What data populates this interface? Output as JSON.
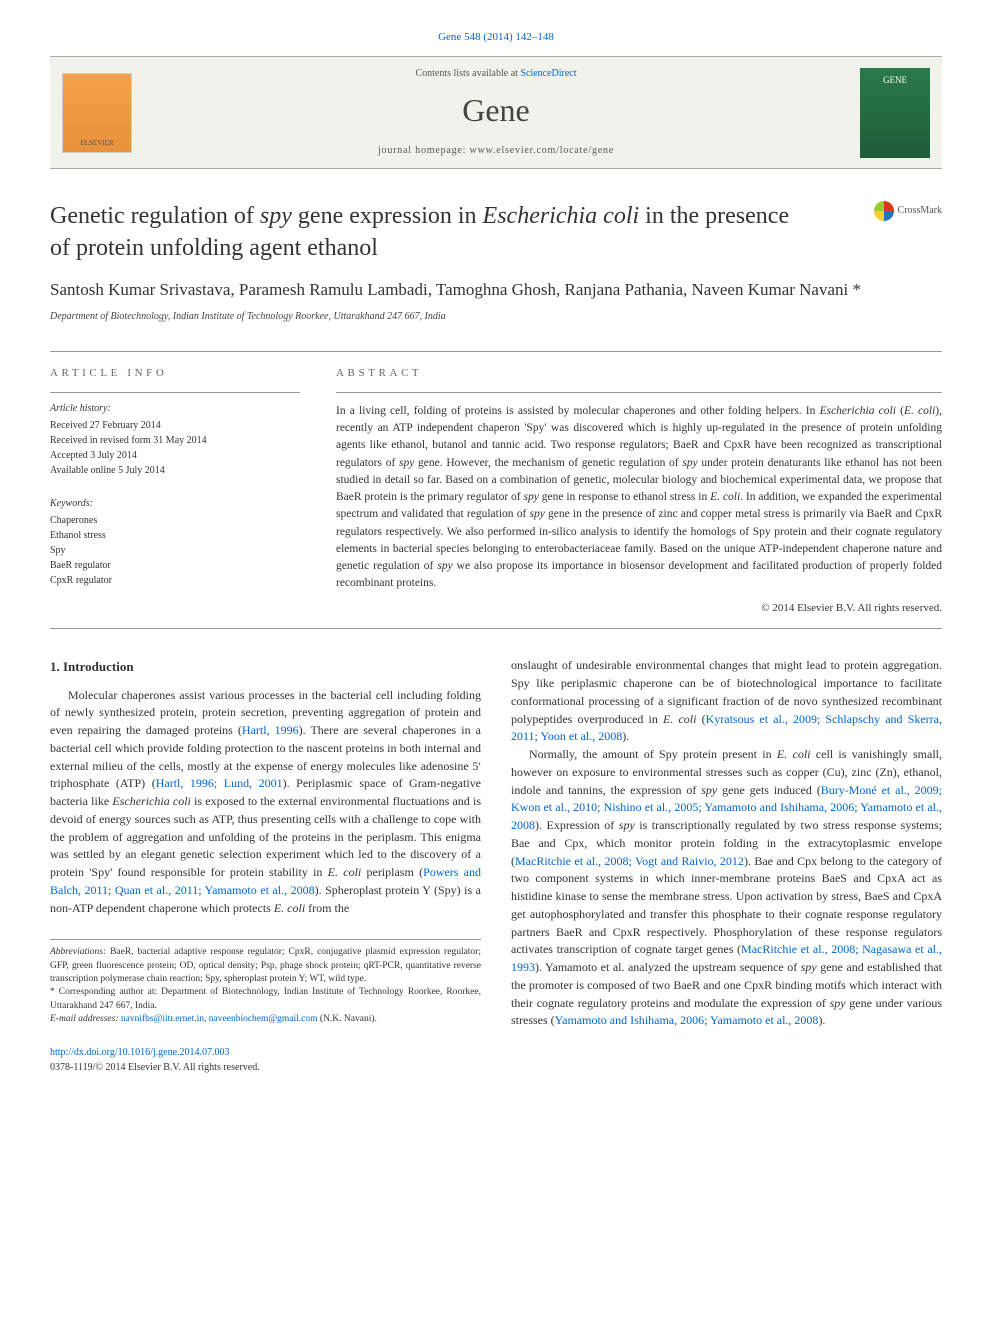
{
  "citation": {
    "journal": "Gene",
    "volume_pages": "548 (2014) 142–148"
  },
  "header": {
    "contents_prefix": "Contents lists available at ",
    "contents_link": "ScienceDirect",
    "journal_name": "Gene",
    "homepage_label": "journal homepage: www.elsevier.com/locate/gene",
    "publisher_logo_label": "ELSEVIER",
    "cover_label": "GENE"
  },
  "crossmark_label": "CrossMark",
  "title_parts": {
    "p1": "Genetic regulation of ",
    "i1": "spy",
    "p2": " gene expression in ",
    "i2": "Escherichia coli",
    "p3": " in the presence of protein unfolding agent ethanol"
  },
  "authors": "Santosh Kumar Srivastava, Paramesh Ramulu Lambadi, Tamoghna Ghosh, Ranjana Pathania, Naveen Kumar Navani *",
  "affiliation": "Department of Biotechnology, Indian Institute of Technology Roorkee, Uttarakhand 247 667, India",
  "article_info_label": "article info",
  "abstract_label": "abstract",
  "history": {
    "heading": "Article history:",
    "received": "Received 27 February 2014",
    "revised": "Received in revised form 31 May 2014",
    "accepted": "Accepted 3 July 2014",
    "online": "Available online 5 July 2014"
  },
  "keywords": {
    "heading": "Keywords:",
    "items": [
      "Chaperones",
      "Ethanol stress",
      "Spy",
      "BaeR regulator",
      "CpxR regulator"
    ]
  },
  "abstract": {
    "p1a": "In a living cell, folding of proteins is assisted by molecular chaperones and other folding helpers. In ",
    "i1": "Escherichia coli",
    "p1b": " (",
    "i2": "E. coli",
    "p1c": "), recently an ATP independent chaperon 'Spy' was discovered which is highly up-regulated in the presence of protein unfolding agents like ethanol, butanol and tannic acid. Two response regulators; BaeR and CpxR have been recognized as transcriptional regulators of ",
    "i3": "spy",
    "p1d": " gene. However, the mechanism of genetic regulation of ",
    "i4": "spy",
    "p1e": " under protein denaturants like ethanol has not been studied in detail so far. Based on a combination of genetic, molecular biology and biochemical experimental data, we propose that BaeR protein is the primary regulator of ",
    "i5": "spy",
    "p1f": " gene in response to ethanol stress in ",
    "i6": "E. coli",
    "p1g": ". In addition, we expanded the experimental spectrum and validated that regulation of ",
    "i7": "spy",
    "p1h": " gene in the presence of zinc and copper metal stress is primarily via BaeR and CpxR regulators respectively. We also performed in-silico analysis to identify the homologs of Spy protein and their cognate regulatory elements in bacterial species belonging to enterobacteriaceae family. Based on the unique ATP-independent chaperone nature and genetic regulation of ",
    "i8": "spy",
    "p1i": " we also propose its importance in biosensor development and facilitated production of properly folded recombinant proteins."
  },
  "copyright": "© 2014 Elsevier B.V. All rights reserved.",
  "intro_heading": "1. Introduction",
  "intro": {
    "p1": "Molecular chaperones assist various processes in the bacterial cell including folding of newly synthesized protein, protein secretion, preventing aggregation of protein and even repairing the damaged proteins (",
    "r1": "Hartl, 1996",
    "p2": "). There are several chaperones in a bacterial cell which provide folding protection to the nascent proteins in both internal and external milieu of the cells, mostly at the expense of energy molecules like adenosine 5′ triphosphate (ATP) (",
    "r2": "Hartl, 1996; Lund, 2001",
    "p3": "). Periplasmic space of Gram-negative bacteria like ",
    "i1": "Escherichia coli",
    "p4": " is exposed to the external environmental fluctuations and is devoid of energy sources such as ATP, thus presenting cells with a challenge to cope with the problem of aggregation and unfolding of the proteins in the periplasm. This enigma was settled by an elegant genetic selection experiment which led to the discovery of a protein 'Spy' found responsible for protein stability in ",
    "i2": "E. coli",
    "p5": " periplasm (",
    "r3": "Powers and Balch, 2011; Quan et al., 2011; Yamamoto et al., 2008",
    "p6": "). Spheroplast protein Y (Spy) is a non-ATP dependent chaperone which protects ",
    "i3": "E. coli",
    "p7": " from the"
  },
  "col2": {
    "p1": "onslaught of undesirable environmental changes that might lead to protein aggregation. Spy like periplasmic chaperone can be of biotechnological importance to facilitate conformational processing of a significant fraction of de novo synthesized recombinant polypeptides overproduced in ",
    "i1": "E. coli",
    "p2": " (",
    "r1": "Kyratsous et al., 2009; Schlapschy and Skerra, 2011; Yoon et al., 2008",
    "p3": ").",
    "p4": "Normally, the amount of Spy protein present in ",
    "i2": "E. coli",
    "p5": " cell is vanishingly small, however on exposure to environmental stresses such as copper (Cu), zinc (Zn), ethanol, indole and tannins, the expression of ",
    "i3": "spy",
    "p6": " gene gets induced (",
    "r2": "Bury-Moné et al., 2009; Kwon et al., 2010; Nishino et al., 2005; Yamamoto and Ishihama, 2006; Yamamoto et al., 2008",
    "p7": "). Expression of ",
    "i4": "spy",
    "p8": " is transcriptionally regulated by two stress response systems; Bae and Cpx, which monitor protein folding in the extracytoplasmic envelope (",
    "r3": "MacRitchie et al., 2008; Vogt and Raivio, 2012",
    "p9": "). Bae and Cpx belong to the category of two component systems in which inner-membrane proteins BaeS and CpxA act as histidine kinase to sense the membrane stress. Upon activation by stress, BaeS and CpxA get autophosphorylated and transfer this phosphate to their cognate response regulatory partners BaeR and CpxR respectively. Phosphorylation of these response regulators activates transcription of cognate target genes (",
    "r4": "MacRitchie et al., 2008; Nagasawa et al., 1993",
    "p10": "). Yamamoto et al. analyzed the upstream sequence of ",
    "i5": "spy",
    "p11": " gene and established that the promoter is composed of two BaeR and one CpxR binding motifs which interact with their cognate regulatory proteins and modulate the expression of ",
    "i6": "spy",
    "p12": " gene under various stresses (",
    "r5": "Yamamoto and Ishihama, 2006; Yamamoto et al., 2008",
    "p13": ")."
  },
  "footnotes": {
    "abbrev_label": "Abbreviations:",
    "abbrev_text": " BaeR, bacterial adaptive response regulator; CpxR, conjugative plasmid expression regulator; GFP, green fluorescence protein; OD, optical density; Psp, phage shock protein; qRT-PCR, quantitative reverse transcription polymerase chain reaction; Spy, spheroplast protein Y; WT, wild type.",
    "corresponding": "* Corresponding author at: Department of Biotechnology, Indian Institute of Technology Roorkee, Roorkee, Uttarakhand 247 667, India.",
    "email_label": "E-mail addresses:",
    "email1": "navnifbs@iitr.ernet.in",
    "email2": "naveenbiochem@gmail.com",
    "email_suffix": " (N.K. Navani)."
  },
  "footer": {
    "doi": "http://dx.doi.org/10.1016/j.gene.2014.07.003",
    "issn_copyright": "0378-1119/© 2014 Elsevier B.V. All rights reserved."
  },
  "colors": {
    "link": "#0066cc",
    "band_bg": "#f2f2ec",
    "rule": "#999999",
    "text": "#333333"
  }
}
